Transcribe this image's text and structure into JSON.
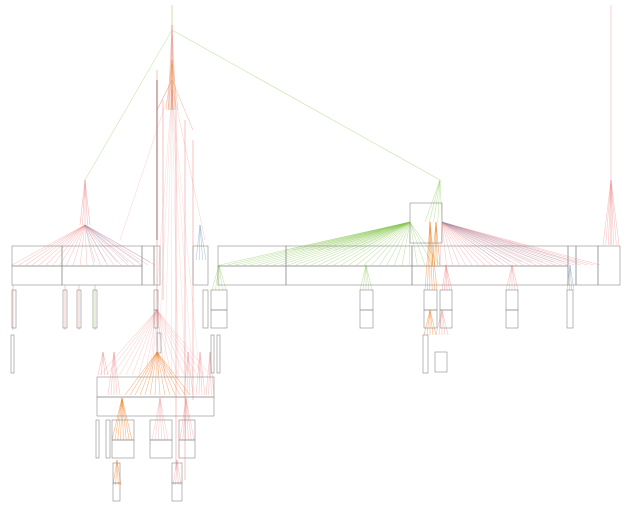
{
  "diagram": {
    "type": "hierarchical-edge-fan-graph",
    "colors": {
      "red": "#f08080",
      "orange": "#f07818",
      "green": "#88c850",
      "blue": "#7a9cc8",
      "node_border": "#8a8a8a",
      "background": "#ffffff"
    },
    "labels_visible": false
  }
}
